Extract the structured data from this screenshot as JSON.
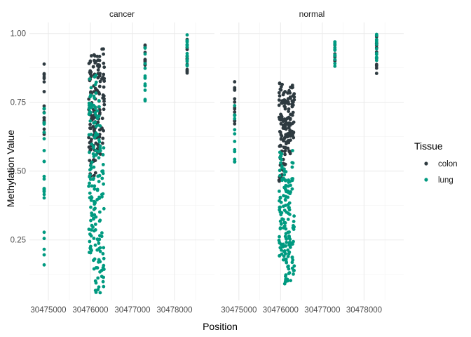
{
  "chart_data": {
    "type": "scatter",
    "facets": [
      "cancer",
      "normal"
    ],
    "xlabel": "Position",
    "ylabel": "Methylation Value",
    "x_ticks": [
      30475000,
      30476000,
      30477000,
      30478000
    ],
    "y_ticks": [
      0.25,
      0.5,
      0.75,
      1.0
    ],
    "y_tick_labels": [
      "0.25",
      "0.50",
      "0.75",
      "1.00"
    ],
    "xlim": [
      30474550,
      30478950
    ],
    "ylim": [
      0.03,
      1.04
    ],
    "grid": true,
    "legend": {
      "title": "Tissue",
      "placement": "right"
    },
    "series": [
      {
        "name": "colon",
        "color": "#2e3a40",
        "clusters": {
          "cancer": [
            {
              "x": 30474900,
              "x_spread": 0,
              "ymin": 0.58,
              "ymax": 0.89,
              "n": 18
            },
            {
              "x": 30476000,
              "x_spread": 40,
              "ymin": 0.48,
              "ymax": 0.92,
              "n": 45
            },
            {
              "x": 30476100,
              "x_spread": 40,
              "ymin": 0.48,
              "ymax": 0.93,
              "n": 45
            },
            {
              "x": 30476200,
              "x_spread": 40,
              "ymin": 0.55,
              "ymax": 0.92,
              "n": 40
            },
            {
              "x": 30476300,
              "x_spread": 30,
              "ymin": 0.6,
              "ymax": 0.95,
              "n": 25
            },
            {
              "x": 30477300,
              "x_spread": 0,
              "ymin": 0.88,
              "ymax": 0.97,
              "n": 12
            },
            {
              "x": 30478300,
              "x_spread": 0,
              "ymin": 0.85,
              "ymax": 0.99,
              "n": 14
            }
          ],
          "normal": [
            {
              "x": 30474900,
              "x_spread": 0,
              "ymin": 0.65,
              "ymax": 0.84,
              "n": 14
            },
            {
              "x": 30476000,
              "x_spread": 40,
              "ymin": 0.45,
              "ymax": 0.83,
              "n": 45
            },
            {
              "x": 30476100,
              "x_spread": 40,
              "ymin": 0.5,
              "ymax": 0.8,
              "n": 45
            },
            {
              "x": 30476200,
              "x_spread": 40,
              "ymin": 0.55,
              "ymax": 0.82,
              "n": 40
            },
            {
              "x": 30476300,
              "x_spread": 30,
              "ymin": 0.62,
              "ymax": 0.82,
              "n": 22
            },
            {
              "x": 30477300,
              "x_spread": 0,
              "ymin": 0.9,
              "ymax": 0.96,
              "n": 8
            },
            {
              "x": 30478300,
              "x_spread": 0,
              "ymin": 0.85,
              "ymax": 1.0,
              "n": 14
            }
          ]
        }
      },
      {
        "name": "lung",
        "color": "#009a80",
        "clusters": {
          "cancer": [
            {
              "x": 30474900,
              "x_spread": 0,
              "ymin": 0.14,
              "ymax": 0.75,
              "n": 24
            },
            {
              "x": 30476000,
              "x_spread": 40,
              "ymin": 0.2,
              "ymax": 0.85,
              "n": 50
            },
            {
              "x": 30476100,
              "x_spread": 40,
              "ymin": 0.05,
              "ymax": 0.85,
              "n": 55
            },
            {
              "x": 30476200,
              "x_spread": 40,
              "ymin": 0.05,
              "ymax": 0.78,
              "n": 45
            },
            {
              "x": 30476300,
              "x_spread": 30,
              "ymin": 0.08,
              "ymax": 0.65,
              "n": 25
            },
            {
              "x": 30477300,
              "x_spread": 0,
              "ymin": 0.75,
              "ymax": 0.97,
              "n": 14
            },
            {
              "x": 30478300,
              "x_spread": 0,
              "ymin": 0.88,
              "ymax": 1.0,
              "n": 16
            }
          ],
          "normal": [
            {
              "x": 30474900,
              "x_spread": 0,
              "ymin": 0.53,
              "ymax": 0.75,
              "n": 14
            },
            {
              "x": 30476000,
              "x_spread": 40,
              "ymin": 0.18,
              "ymax": 0.57,
              "n": 40
            },
            {
              "x": 30476100,
              "x_spread": 40,
              "ymin": 0.09,
              "ymax": 0.55,
              "n": 50
            },
            {
              "x": 30476200,
              "x_spread": 40,
              "ymin": 0.1,
              "ymax": 0.5,
              "n": 45
            },
            {
              "x": 30476300,
              "x_spread": 30,
              "ymin": 0.12,
              "ymax": 0.59,
              "n": 25
            },
            {
              "x": 30477300,
              "x_spread": 0,
              "ymin": 0.88,
              "ymax": 0.97,
              "n": 14
            },
            {
              "x": 30478300,
              "x_spread": 0,
              "ymin": 0.9,
              "ymax": 1.0,
              "n": 14
            }
          ]
        }
      }
    ]
  }
}
